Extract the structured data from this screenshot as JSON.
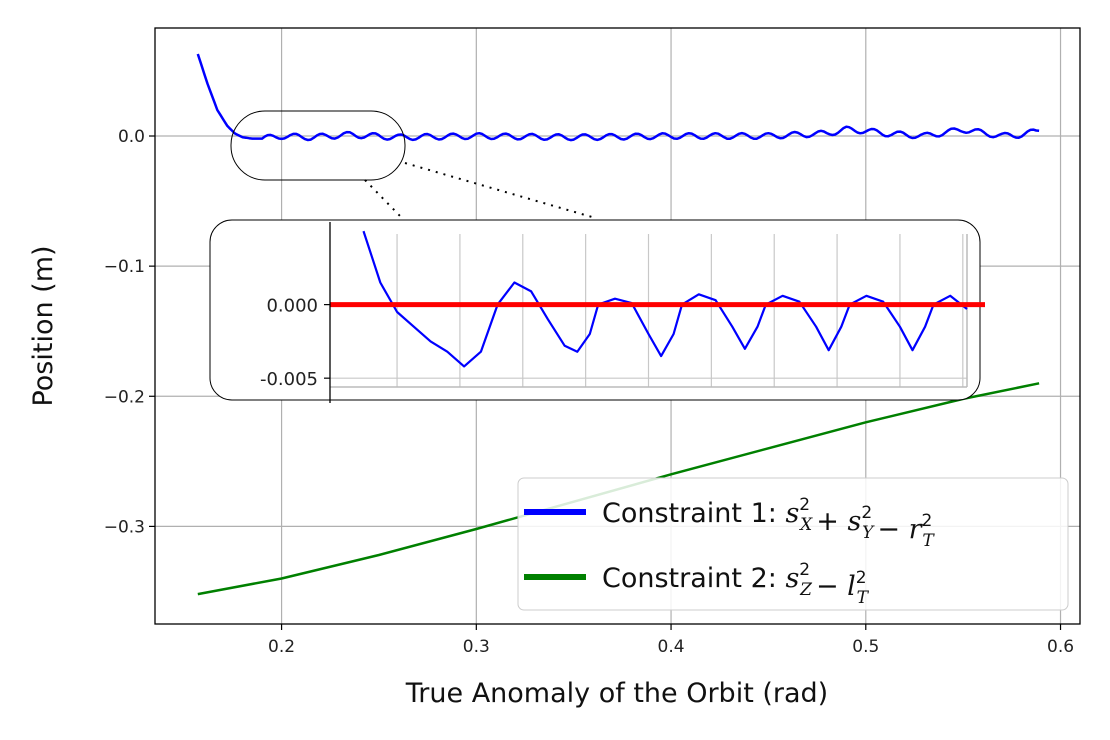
{
  "chart_data": {
    "type": "line",
    "xlabel": "True Anomaly of the Orbit (rad)",
    "ylabel": "Position (m)",
    "xlim": [
      0.135,
      0.61
    ],
    "ylim": [
      -0.375,
      0.083
    ],
    "xticks": [
      0.2,
      0.3,
      0.4,
      0.5,
      0.6
    ],
    "xtick_labels": [
      "0.2",
      "0.3",
      "0.4",
      "0.5",
      "0.6"
    ],
    "yticks": [
      0.0,
      -0.1,
      -0.2,
      -0.3
    ],
    "ytick_labels": [
      "0.0",
      "−0.1",
      "−0.2",
      "−0.3"
    ],
    "grid": true,
    "legend_position": "lower-right",
    "series": [
      {
        "name": "Constraint 1: s_X^2 + s_Y^2 − r_T^2",
        "color": "#0000ff",
        "x": [
          0.157,
          0.162,
          0.167,
          0.172,
          0.176,
          0.18,
          0.185,
          0.19,
          0.2,
          0.215,
          0.235,
          0.26,
          0.3,
          0.35,
          0.4,
          0.45,
          0.48,
          0.49,
          0.5,
          0.51,
          0.53,
          0.55,
          0.57,
          0.58,
          0.589
        ],
        "y": [
          0.063,
          0.04,
          0.02,
          0.008,
          0.002,
          -0.001,
          -0.002,
          -0.002,
          0.0,
          -0.001,
          0.001,
          -0.001,
          0.0,
          -0.001,
          0.0,
          0.0,
          0.002,
          0.005,
          0.004,
          0.002,
          0.0,
          0.005,
          0.0,
          0.001,
          0.004
        ]
      },
      {
        "name": "Constraint 2: s_Z^2 − l_T^2",
        "color": "#008000",
        "x": [
          0.157,
          0.2,
          0.25,
          0.3,
          0.35,
          0.4,
          0.45,
          0.5,
          0.55,
          0.589
        ],
        "y": [
          -0.352,
          -0.34,
          -0.322,
          -0.302,
          -0.281,
          -0.26,
          -0.24,
          -0.22,
          -0.202,
          -0.19
        ]
      }
    ],
    "legend_labels": [
      {
        "text": "Constraint 1: ",
        "math": [
          [
            "s",
            "X",
            "2"
          ],
          [
            "+"
          ],
          [
            "s",
            "Y",
            "2"
          ],
          [
            "−"
          ],
          [
            "r",
            "T",
            "2"
          ]
        ]
      },
      {
        "text": "Constraint 2: ",
        "math": [
          [
            "s",
            "Z",
            "2"
          ],
          [
            "−"
          ],
          [
            "l",
            "T",
            "2"
          ]
        ]
      }
    ],
    "inset": {
      "xlim": [
        0.18,
        0.256
      ],
      "ylim": [
        -0.0056,
        0.0048
      ],
      "yticks": [
        0.0,
        -0.005
      ],
      "ytick_labels": [
        "0.000",
        "-0.005"
      ],
      "reference_line": {
        "y": 0.0,
        "color": "#ff0000"
      },
      "series": [
        {
          "color": "#0000ff",
          "x": [
            0.184,
            0.186,
            0.188,
            0.19,
            0.192,
            0.194,
            0.196,
            0.198,
            0.2,
            0.202,
            0.204,
            0.206,
            0.208,
            0.2095,
            0.211,
            0.212,
            0.214,
            0.216,
            0.218,
            0.2195,
            0.221,
            0.222,
            0.224,
            0.226,
            0.228,
            0.2295,
            0.231,
            0.232,
            0.234,
            0.236,
            0.238,
            0.2395,
            0.241,
            0.242,
            0.244,
            0.246,
            0.248,
            0.2495,
            0.251,
            0.252,
            0.254,
            0.256
          ],
          "y": [
            0.005,
            0.0015,
            -0.0005,
            -0.0015,
            -0.0025,
            -0.0032,
            -0.0042,
            -0.0032,
            0.0,
            0.0015,
            0.0009,
            -0.001,
            -0.0028,
            -0.0032,
            -0.002,
            0.0,
            0.0004,
            0.0001,
            -0.002,
            -0.0035,
            -0.002,
            0.0,
            0.0007,
            0.0003,
            -0.0015,
            -0.003,
            -0.0015,
            0.0,
            0.0006,
            0.0002,
            -0.0015,
            -0.0031,
            -0.0015,
            0.0,
            0.0006,
            0.0002,
            -0.0015,
            -0.0031,
            -0.0015,
            0.0,
            0.0006,
            -0.0003
          ]
        }
      ]
    }
  }
}
